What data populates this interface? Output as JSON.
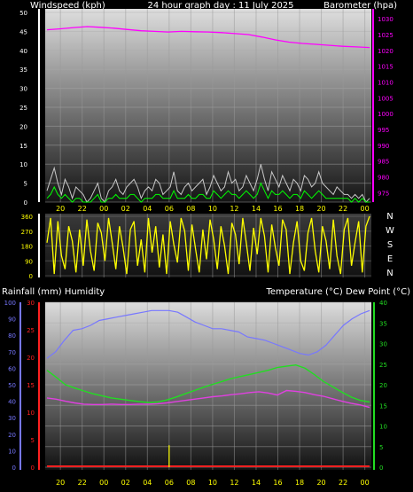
{
  "header": {
    "left": "Windspeed (kph)",
    "center": "24 hour graph day : 11 July 2025",
    "right": "Barometer (hpa)"
  },
  "x_ticks": [
    "20",
    "22",
    "00",
    "02",
    "04",
    "06",
    "08",
    "10",
    "12",
    "14",
    "16",
    "18",
    "20",
    "22",
    "00"
  ],
  "colors": {
    "axis_yellow": "#ffff00",
    "barometer": "#ff00ff",
    "wind_gust": "#c8c8c8",
    "wind_avg": "#00ff00",
    "direction": "#ffff00",
    "humidity": "#7777ff",
    "temperature": "#22dd22",
    "dew_point": "#e040e0",
    "rain": "#ff2020"
  },
  "chart_data": [
    {
      "type": "line",
      "name": "wind-barometer",
      "left_axis": {
        "label": "Windspeed (kph)",
        "ticks": [
          0,
          5,
          10,
          15,
          20,
          25,
          30,
          35,
          40,
          45,
          50
        ],
        "range": [
          0,
          50
        ]
      },
      "right_axis": {
        "label": "Barometer (hpa)",
        "ticks": [
          975,
          980,
          985,
          990,
          995,
          1000,
          1005,
          1010,
          1015,
          1020,
          1025,
          1030
        ],
        "range": [
          972,
          1032
        ]
      },
      "series": [
        {
          "role": "barometer",
          "axis": "right",
          "values": [
            1026.5,
            1026.8,
            1027.2,
            1027.5,
            1027.3,
            1027.0,
            1026.6,
            1026.2,
            1026.0,
            1025.8,
            1026.0,
            1025.9,
            1025.8,
            1025.6,
            1025.3,
            1025.0,
            1024.2,
            1023.3,
            1022.6,
            1022.2,
            1021.9,
            1021.6,
            1021.3,
            1021.1,
            1020.9
          ]
        },
        {
          "role": "wind-gust",
          "axis": "left",
          "values": [
            3,
            6,
            9,
            5,
            2,
            6,
            4,
            1,
            4,
            3,
            2,
            0,
            1,
            3,
            5,
            1,
            0,
            3,
            4,
            6,
            3,
            2,
            4,
            5,
            6,
            4,
            1,
            3,
            4,
            3,
            6,
            5,
            2,
            3,
            4,
            8,
            3,
            2,
            4,
            5,
            3,
            4,
            5,
            6,
            2,
            4,
            7,
            5,
            3,
            4,
            8,
            5,
            6,
            3,
            4,
            7,
            5,
            3,
            6,
            10,
            6,
            3,
            8,
            6,
            4,
            7,
            5,
            3,
            6,
            5,
            3,
            7,
            6,
            4,
            5,
            8,
            5,
            4,
            3,
            2,
            4,
            3,
            2,
            2,
            1,
            2,
            1,
            2,
            0,
            1
          ]
        },
        {
          "role": "wind-average",
          "axis": "left",
          "values": [
            1,
            2,
            4,
            2,
            1,
            2,
            1,
            0,
            1,
            1,
            0,
            0,
            0,
            1,
            2,
            0,
            0,
            1,
            1,
            2,
            1,
            1,
            1,
            2,
            2,
            1,
            0,
            1,
            1,
            1,
            2,
            2,
            1,
            1,
            1,
            3,
            1,
            1,
            1,
            2,
            1,
            1,
            2,
            2,
            1,
            1,
            3,
            2,
            1,
            2,
            3,
            2,
            2,
            1,
            2,
            3,
            2,
            1,
            2,
            5,
            3,
            1,
            3,
            2,
            2,
            3,
            2,
            1,
            2,
            2,
            1,
            3,
            2,
            1,
            2,
            3,
            2,
            1,
            1,
            1,
            1,
            1,
            1,
            1,
            0,
            1,
            0,
            1,
            0,
            0
          ]
        }
      ]
    },
    {
      "type": "scatter",
      "name": "wind-direction",
      "left_axis": {
        "ticks": [
          0,
          90,
          180,
          270,
          360
        ],
        "range": [
          0,
          360
        ]
      },
      "right_axis": {
        "ticks": [
          "N",
          "W",
          "S",
          "E",
          "N"
        ]
      },
      "series": [
        {
          "role": "direction",
          "values": [
            200,
            350,
            10,
            330,
            120,
            40,
            300,
            210,
            20,
            280,
            60,
            340,
            150,
            30,
            320,
            260,
            90,
            350,
            200,
            40,
            300,
            170,
            10,
            280,
            330,
            60,
            220,
            20,
            350,
            140,
            300,
            50,
            250,
            10,
            330,
            190,
            80,
            350,
            270,
            30,
            310,
            160,
            20,
            280,
            100,
            340,
            220,
            40,
            300,
            180,
            10,
            320,
            250,
            70,
            350,
            200,
            30,
            290,
            130,
            350,
            240,
            20,
            310,
            170,
            60,
            340,
            280,
            10,
            200,
            330,
            90,
            30,
            260,
            350,
            150,
            20,
            300,
            210,
            40,
            340,
            120,
            10,
            280,
            350,
            60,
            200,
            330,
            20,
            300,
            360
          ]
        }
      ]
    },
    {
      "type": "line",
      "name": "temperature-humidity",
      "header": {
        "left": "Rainfall (mm)  Humidity",
        "right": "Temperature (°C) Dew Point (°C)"
      },
      "humidity_axis": {
        "ticks": [
          0,
          10,
          20,
          30,
          40,
          50,
          60,
          70,
          80,
          90,
          100
        ],
        "range": [
          0,
          100
        ]
      },
      "rain_axis": {
        "ticks": [
          0,
          5,
          10,
          15,
          20,
          25,
          30
        ],
        "range": [
          0,
          30
        ]
      },
      "temp_axis": {
        "ticks": [
          0,
          5,
          10,
          15,
          20,
          25,
          30,
          35,
          40
        ],
        "range": [
          0,
          40
        ]
      },
      "series": [
        {
          "role": "humidity",
          "axis": "humidity",
          "values": [
            66,
            70,
            77,
            83,
            84,
            86,
            89,
            90,
            91,
            92,
            93,
            94,
            95,
            95,
            95,
            94,
            91,
            88,
            86,
            84,
            84,
            83,
            82,
            79,
            78,
            77,
            75,
            73,
            71,
            69,
            68,
            70,
            74,
            80,
            86,
            90,
            93,
            95
          ]
        },
        {
          "role": "temperature",
          "axis": "temp",
          "values": [
            23.5,
            21.8,
            20.0,
            19.2,
            18.5,
            17.8,
            17.3,
            16.8,
            16.5,
            16.2,
            15.9,
            15.7,
            15.8,
            16.3,
            17.0,
            17.8,
            18.6,
            19.4,
            20.1,
            20.8,
            21.5,
            22.0,
            22.5,
            23.0,
            23.5,
            24.2,
            24.5,
            24.8,
            24.0,
            22.5,
            20.8,
            19.5,
            18.2,
            17.0,
            16.2,
            15.8
          ]
        },
        {
          "role": "dew-point",
          "axis": "temp",
          "values": [
            16.8,
            16.5,
            16.0,
            15.6,
            15.3,
            15.2,
            15.2,
            15.3,
            15.2,
            15.2,
            15.3,
            15.3,
            15.4,
            15.6,
            15.9,
            16.2,
            16.5,
            16.8,
            17.1,
            17.3,
            17.6,
            17.8,
            18.1,
            18.3,
            18.0,
            17.5,
            18.6,
            18.4,
            18.1,
            17.6,
            17.2,
            16.6,
            16.0,
            15.5,
            15.1,
            14.5
          ]
        },
        {
          "role": "rain",
          "axis": "rain",
          "values": [
            0,
            0,
            0,
            0,
            0,
            0,
            0,
            0,
            0,
            0,
            0,
            0,
            0,
            0,
            0,
            0,
            0,
            0,
            0,
            0,
            0,
            0,
            0,
            0,
            0,
            0,
            0,
            0,
            0,
            0,
            0,
            0,
            0,
            0,
            0,
            0
          ]
        }
      ],
      "events": [
        {
          "role": "rain-tick",
          "x": "06",
          "value": 4
        }
      ]
    }
  ]
}
